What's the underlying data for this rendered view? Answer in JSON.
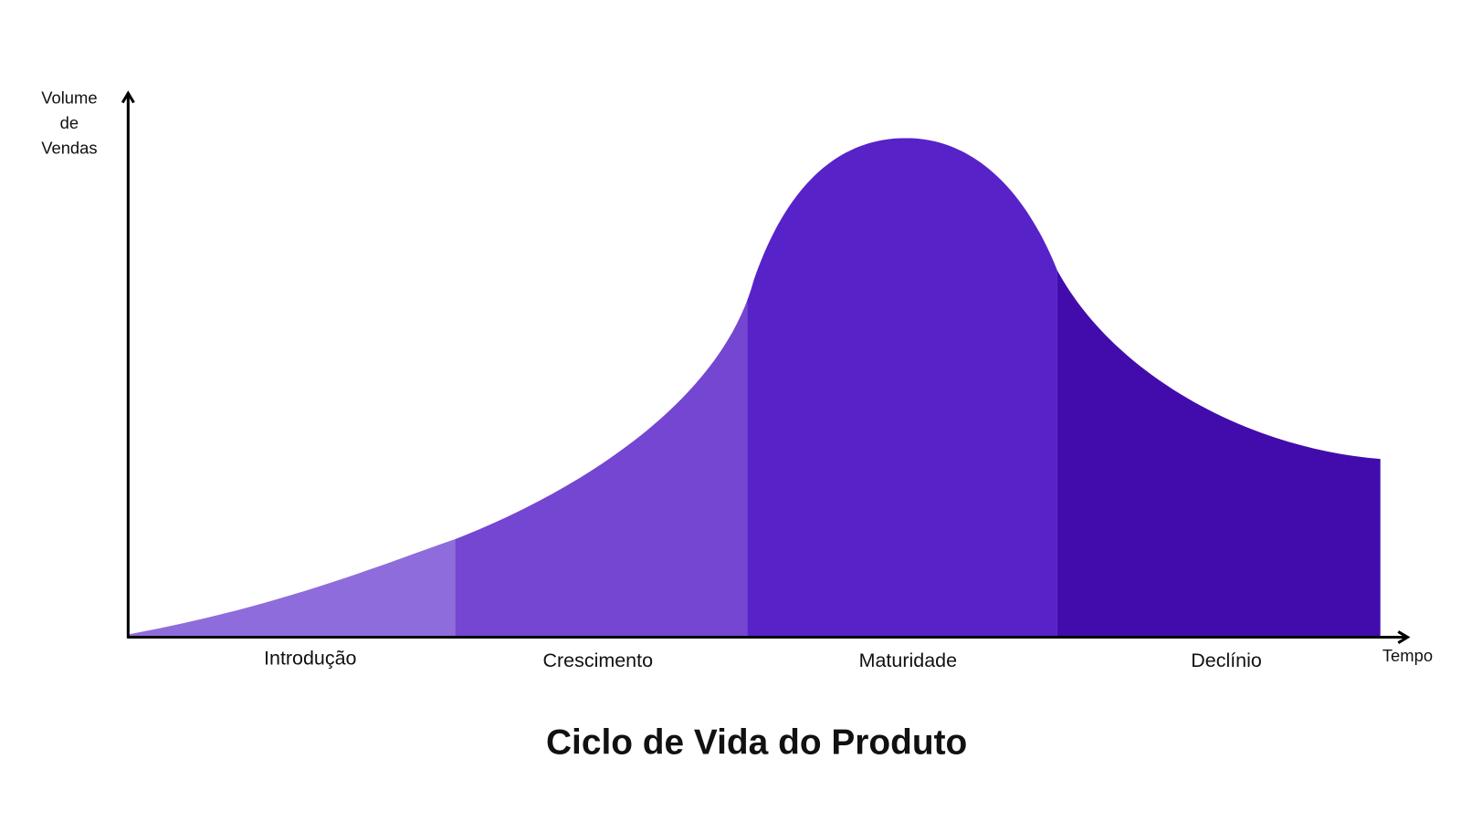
{
  "title": "Ciclo de Vida do Produto",
  "y_axis_label": [
    "Volume",
    "de",
    "Vendas"
  ],
  "x_axis_label": "Tempo",
  "stages": [
    "Introdução",
    "Crescimento",
    "Maturidade",
    "Declínio"
  ]
}
